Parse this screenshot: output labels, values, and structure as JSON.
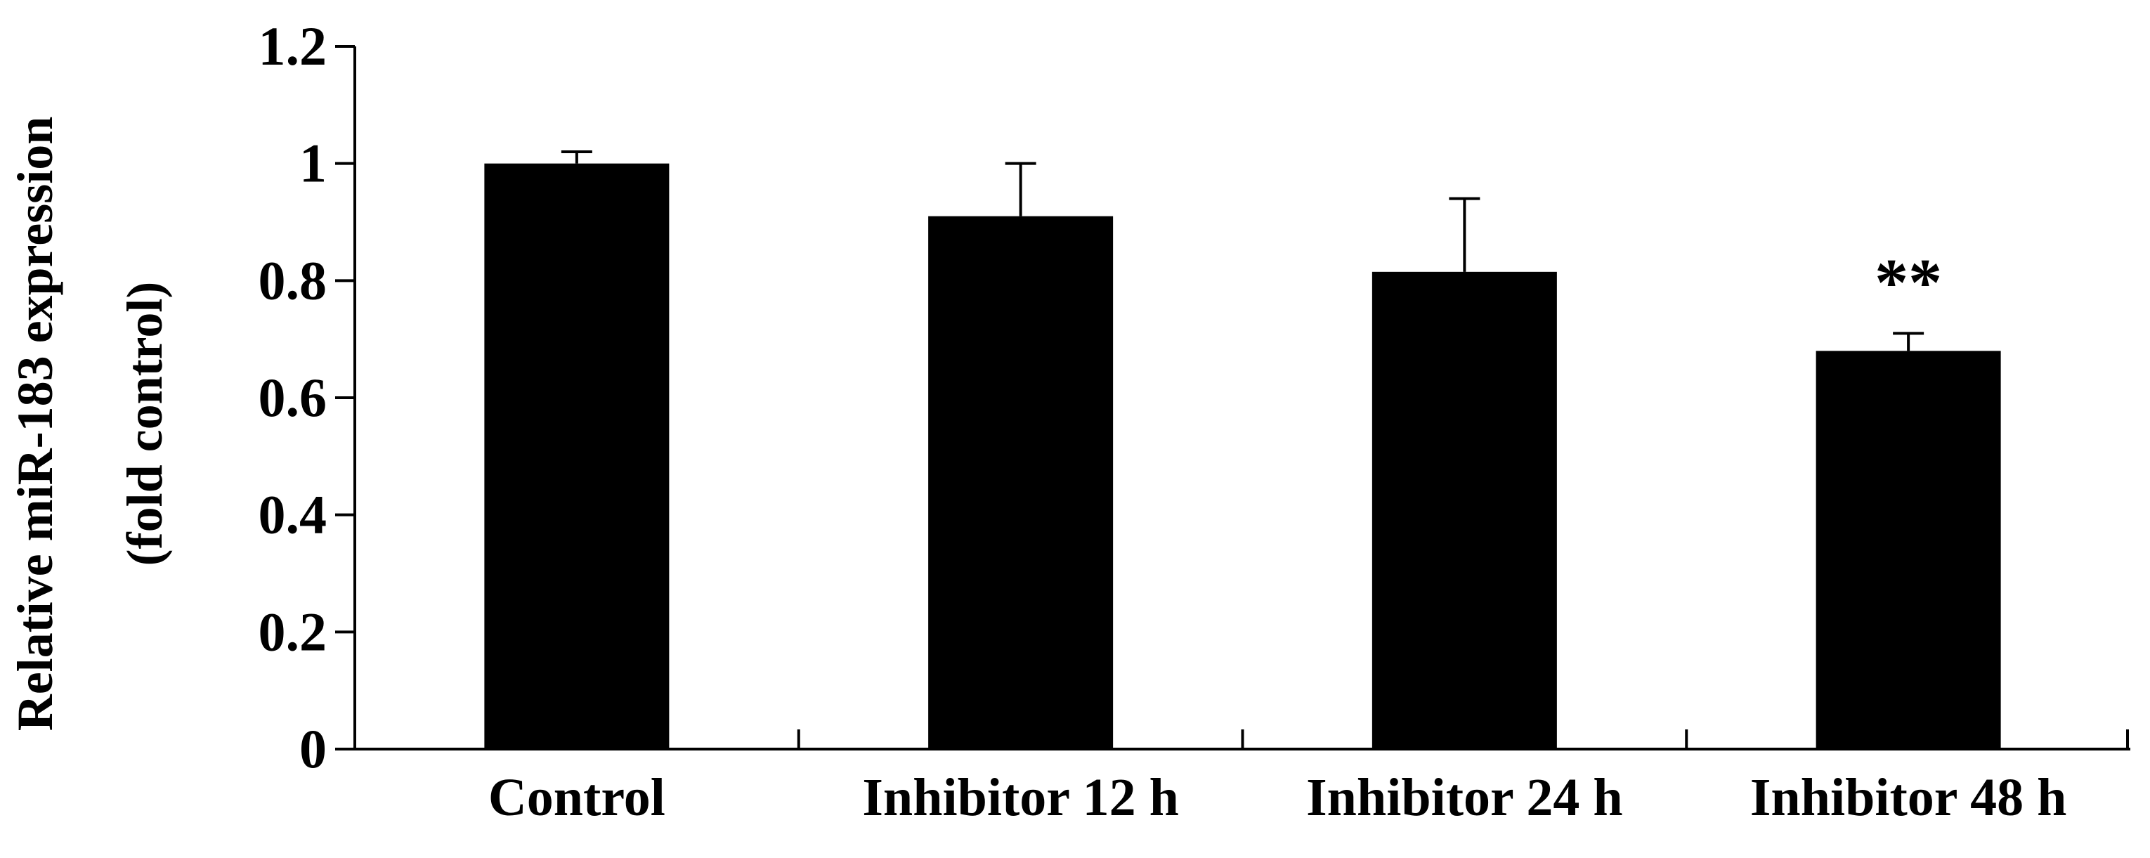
{
  "chart_data": {
    "type": "bar",
    "title": "",
    "xlabel": "",
    "ylabel_line1": "Relative miR-183 expression",
    "ylabel_line2": "(fold control)",
    "categories": [
      "Control",
      "Inhibitor 12 h",
      "Inhibitor 24 h",
      "Inhibitor 48 h"
    ],
    "values": [
      1.0,
      0.91,
      0.815,
      0.68
    ],
    "error_upper": [
      0.02,
      0.09,
      0.125,
      0.03
    ],
    "annotations": [
      "",
      "",
      "",
      "**"
    ],
    "yticks": [
      "0",
      "0.2",
      "0.4",
      "0.6",
      "0.8",
      "1",
      "1.2"
    ],
    "ytick_values": [
      0,
      0.2,
      0.4,
      0.6,
      0.8,
      1.0,
      1.2
    ],
    "ylim": [
      0,
      1.2
    ],
    "grid": false,
    "legend": "none",
    "colors": {
      "bar": "#000000",
      "axis": "#000000",
      "background": "#ffffff"
    }
  }
}
